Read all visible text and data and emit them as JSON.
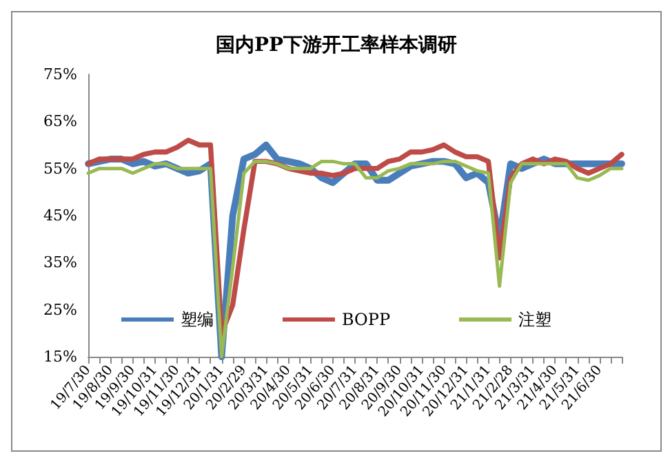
{
  "chart_data": {
    "type": "line",
    "title": "国内PP下游开工率样本调研",
    "categories": [
      "19/7/30",
      null,
      "19/8/30",
      null,
      "19/9/30",
      null,
      "19/10/31",
      null,
      "19/11/30",
      null,
      "19/12/31",
      null,
      "20/1/31",
      null,
      "20/2/29",
      null,
      "20/3/31",
      null,
      "20/4/30",
      null,
      "20/5/31",
      null,
      "20/6/30",
      null,
      "20/7/31",
      null,
      "20/8/31",
      null,
      "20/9/30",
      null,
      "20/10/31",
      null,
      "20/11/30",
      null,
      "20/12/31",
      null,
      "21/1/31",
      null,
      "21/2/28",
      null,
      "21/3/31",
      null,
      "21/4/30",
      null,
      "21/5/31",
      null,
      "21/6/30",
      null,
      null
    ],
    "series": [
      {
        "name": "塑编",
        "color": "#4a7ebb",
        "values": [
          56,
          56.5,
          57,
          57,
          56,
          56.5,
          55.5,
          56,
          55,
          54,
          54.5,
          56,
          15,
          45,
          57,
          58,
          60,
          57,
          56.5,
          56,
          55,
          53,
          52,
          54,
          56,
          56,
          52.5,
          52.5,
          54,
          55.5,
          56,
          56.5,
          56.5,
          56,
          53,
          54,
          52,
          40,
          56,
          55,
          56,
          57,
          56,
          56,
          56,
          56,
          56,
          56,
          56
        ]
      },
      {
        "name": "BOPP",
        "color": "#be4b48",
        "values": [
          56,
          57,
          57,
          57,
          57,
          58,
          58.5,
          58.5,
          59.5,
          61,
          60,
          60,
          20,
          26,
          42,
          56.5,
          56.5,
          56,
          55,
          54.5,
          54,
          54,
          53.5,
          54,
          55,
          55,
          55,
          56.5,
          57,
          58.5,
          58.5,
          59,
          60,
          58.5,
          57.5,
          57.5,
          56.5,
          36,
          53,
          56,
          57,
          56,
          57,
          56.5,
          55,
          54,
          55,
          56,
          58
        ]
      },
      {
        "name": "注塑",
        "color": "#98b954",
        "values": [
          54,
          55,
          55,
          55,
          54,
          55,
          56,
          56,
          55,
          55,
          55,
          55,
          15,
          34,
          54,
          56.5,
          56.5,
          56,
          55,
          55,
          55,
          56.5,
          56.5,
          56,
          56,
          53,
          53,
          54.5,
          55,
          56,
          56,
          56,
          56.5,
          56.5,
          55.5,
          54.5,
          54,
          30,
          52,
          56,
          56,
          56,
          56,
          56,
          53,
          52.5,
          53.5,
          55,
          55
        ]
      }
    ],
    "ylim": [
      15,
      75
    ],
    "yticks": [
      {
        "value": 15,
        "label": "15%"
      },
      {
        "value": 25,
        "label": "25%"
      },
      {
        "value": 35,
        "label": "35%"
      },
      {
        "value": 45,
        "label": "45%"
      },
      {
        "value": 55,
        "label": "55%"
      },
      {
        "value": 65,
        "label": "65%"
      },
      {
        "value": 75,
        "label": "75%"
      }
    ],
    "grid": false,
    "legend": "bottom",
    "marker": "none",
    "line_style": "solid"
  }
}
